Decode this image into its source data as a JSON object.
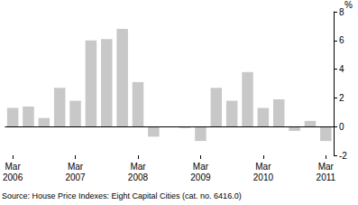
{
  "chart_data": {
    "type": "bar",
    "y_label": "%",
    "annotation": "Source: House Price Indexes: Eight Capital Cities (cat. no. 6416.0)",
    "categories": [
      "Mar 2006",
      null,
      null,
      null,
      "Mar 2007",
      null,
      null,
      null,
      "Mar 2008",
      null,
      null,
      null,
      "Mar 2009",
      null,
      null,
      null,
      "Mar 2010",
      null,
      null,
      null,
      "Mar 2011"
    ],
    "values": [
      1.3,
      1.4,
      0.6,
      2.7,
      1.8,
      6.0,
      6.1,
      6.8,
      3.1,
      -0.7,
      0.0,
      -0.1,
      -1.0,
      2.7,
      1.8,
      3.8,
      1.3,
      1.9,
      -0.3,
      0.4,
      -1.0
    ],
    "color": "#c8c8c8",
    "ylim": [
      -2,
      8
    ],
    "yticks": [
      -2,
      0,
      2,
      4,
      6,
      8
    ],
    "grid": false
  }
}
